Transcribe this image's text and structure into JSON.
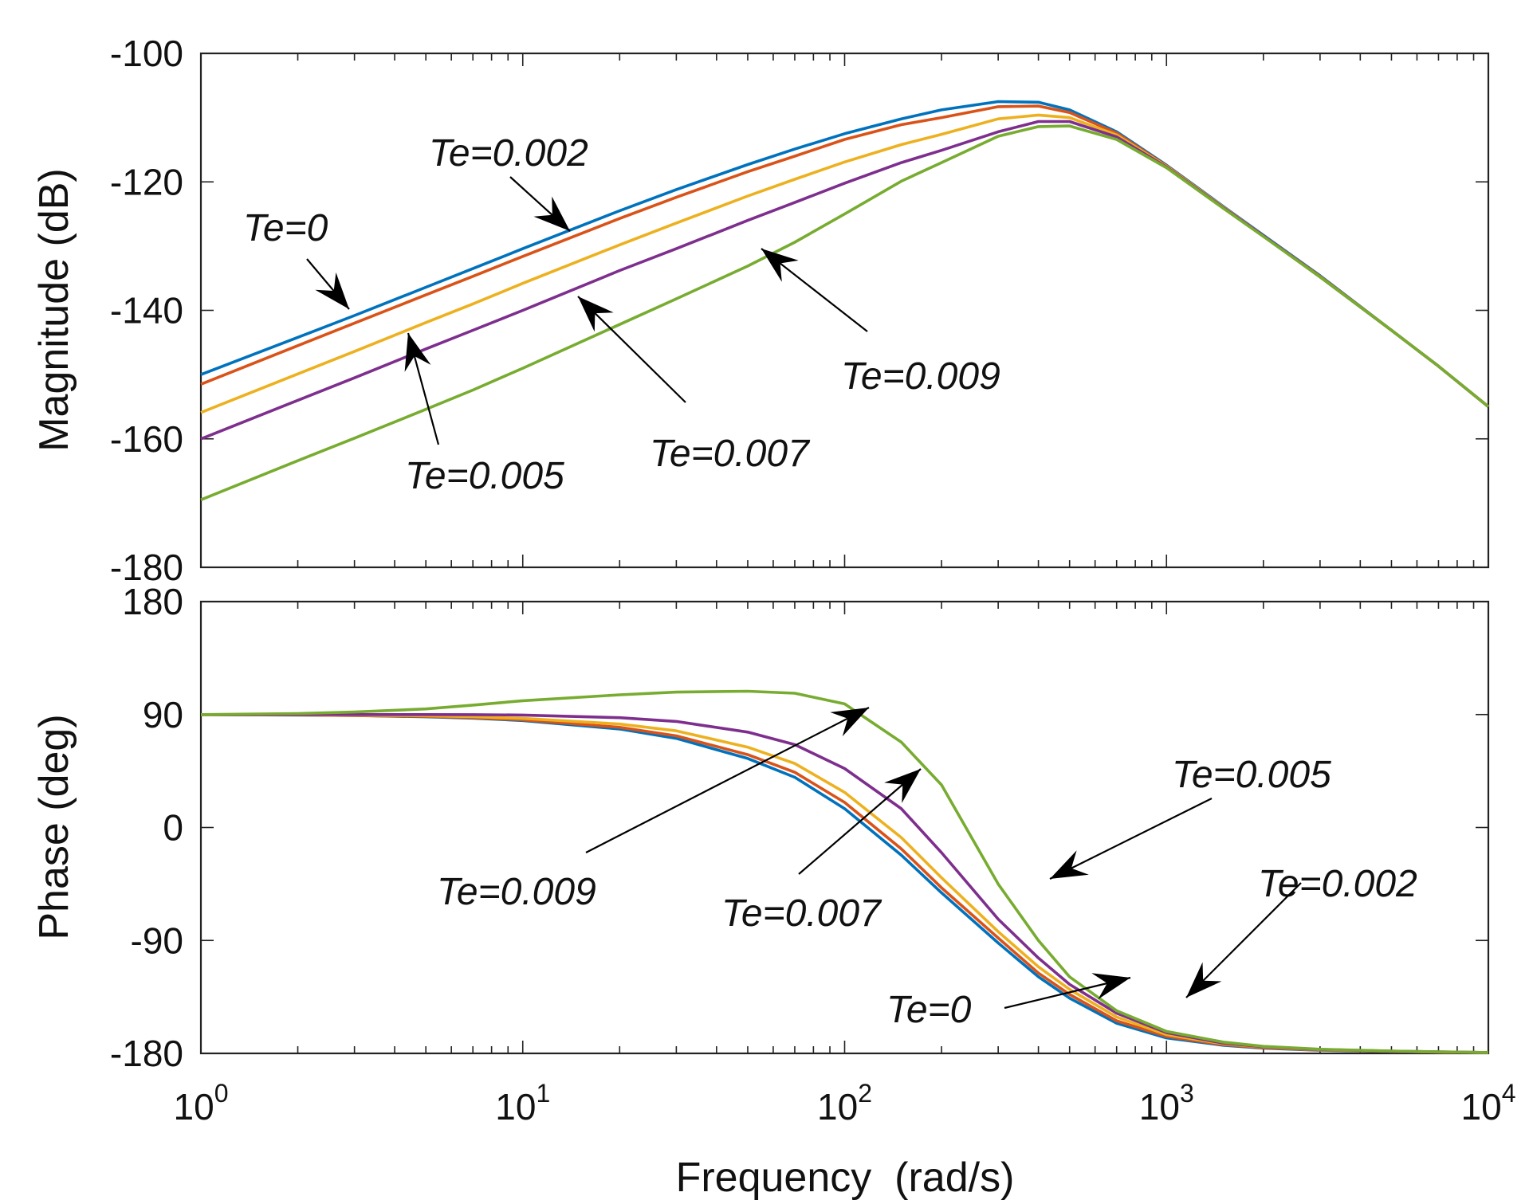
{
  "chart_data": {
    "type": "line",
    "xlabel": "Frequency  (rad/s)",
    "x_scale": "log",
    "xlim": [
      1,
      10000
    ],
    "x_ticks": [
      {
        "value": 1,
        "base": "10",
        "exp": "0"
      },
      {
        "value": 10,
        "base": "10",
        "exp": "1"
      },
      {
        "value": 100,
        "base": "10",
        "exp": "2"
      },
      {
        "value": 1000,
        "base": "10",
        "exp": "3"
      },
      {
        "value": 10000,
        "base": "10",
        "exp": "4"
      }
    ],
    "x": [
      1,
      2,
      3,
      5,
      7,
      10,
      20,
      30,
      50,
      70,
      100,
      150,
      200,
      300,
      400,
      500,
      700,
      1000,
      1500,
      2000,
      3000,
      5000,
      7000,
      10000
    ],
    "panels": [
      {
        "id": "magnitude",
        "ylabel": "Magnitude (dB)",
        "ylim": [
          -180,
          -100
        ],
        "yticks": [
          -100,
          -120,
          -140,
          -160,
          -180
        ],
        "series": [
          {
            "name": "Te=0",
            "color": "#0072BD",
            "values": [
              -150,
              -144.2,
              -140.8,
              -136.4,
              -133.5,
              -130.4,
              -124.5,
              -121.2,
              -117.3,
              -114.9,
              -112.5,
              -110.2,
              -108.8,
              -107.5,
              -107.6,
              -108.8,
              -112.2,
              -117.4,
              -123.8,
              -128.3,
              -134.6,
              -143.1,
              -148.7,
              -155
            ]
          },
          {
            "name": "Te=0.002",
            "color": "#D95319",
            "values": [
              -151.5,
              -145.5,
              -142,
              -137.6,
              -134.7,
              -131.6,
              -125.7,
              -122.4,
              -118.4,
              -116,
              -113.4,
              -111.1,
              -110,
              -108.3,
              -108.2,
              -109.2,
              -112.4,
              -117.5,
              -123.9,
              -128.4,
              -134.7,
              -143.1,
              -148.7,
              -155
            ]
          },
          {
            "name": "Te=0.005",
            "color": "#EDB120",
            "values": [
              -155.9,
              -149.9,
              -146.4,
              -141.9,
              -139,
              -135.8,
              -129.8,
              -126.4,
              -122.2,
              -119.6,
              -116.9,
              -114.2,
              -112.6,
              -110.2,
              -109.6,
              -110,
              -112.7,
              -117.6,
              -123.9,
              -128.4,
              -134.8,
              -143.1,
              -148.7,
              -155
            ]
          },
          {
            "name": "Te=0.007",
            "color": "#7E2F8E",
            "values": [
              -160,
              -154,
              -150.5,
              -146,
              -143.1,
              -140,
              -133.8,
              -130.4,
              -126,
              -123.2,
              -120.2,
              -117,
              -115.1,
              -112.2,
              -110.6,
              -110.6,
              -113,
              -117.7,
              -124,
              -128.4,
              -134.8,
              -143.1,
              -148.7,
              -155
            ]
          },
          {
            "name": "Te=0.009",
            "color": "#77AC30",
            "values": [
              -169.5,
              -163.4,
              -159.9,
              -155.4,
              -152.4,
              -149,
              -142.2,
              -138.2,
              -133.1,
              -129.4,
              -125,
              -119.9,
              -117,
              -112.9,
              -111.4,
              -111.3,
              -113.4,
              -117.8,
              -124.1,
              -128.5,
              -134.8,
              -143.1,
              -148.7,
              -155
            ]
          }
        ]
      },
      {
        "id": "phase",
        "ylabel": "Phase (deg)",
        "ylim": [
          -180,
          180
        ],
        "yticks": [
          180,
          90,
          0,
          -90,
          -180
        ],
        "series": [
          {
            "name": "Te=0",
            "color": "#0072BD",
            "values": [
              90,
              89.6,
              89.2,
              88.2,
              87.1,
              85.2,
              78.5,
              71,
              55,
              40,
              15,
              -22,
              -52,
              -92,
              -119,
              -136,
              -156,
              -167.7,
              -173.5,
              -175.8,
              -177.5,
              -178.5,
              -179,
              -179.4
            ]
          },
          {
            "name": "Te=0.002",
            "color": "#D95319",
            "values": [
              90,
              89.7,
              89.3,
              88.5,
              87.5,
              85.8,
              79.8,
              73,
              58,
              44,
              20,
              -17,
              -48,
              -88,
              -116,
              -133,
              -154,
              -166.5,
              -173,
              -175.5,
              -177.3,
              -178.4,
              -179,
              -179.4
            ]
          },
          {
            "name": "Te=0.005",
            "color": "#EDB120",
            "values": [
              90,
              89.8,
              89.5,
              89,
              88.3,
              86.9,
              82.4,
              77,
              64,
              51,
              28,
              -8,
              -40,
              -83,
              -111,
              -129,
              -151,
              -165,
              -172.3,
              -175,
              -177.1,
              -178.3,
              -178.9,
              -179.3
            ]
          },
          {
            "name": "Te=0.007",
            "color": "#7E2F8E",
            "values": [
              90,
              90,
              90,
              90,
              89.9,
              89.6,
              87.5,
              84.5,
              76,
              66,
              47,
              15,
              -20,
              -73,
              -104,
              -125,
              -148,
              -163.5,
              -171.8,
              -174.7,
              -176.9,
              -178.2,
              -178.8,
              -179.3
            ]
          },
          {
            "name": "Te=0.009",
            "color": "#77AC30",
            "values": [
              90,
              90.8,
              92,
              94.5,
              97.5,
              101,
              105.7,
              107.9,
              108.6,
              107,
              98.5,
              68,
              34,
              -45,
              -90,
              -119,
              -146,
              -162.5,
              -171,
              -174.4,
              -176.7,
              -178.1,
              -178.8,
              -179.3
            ]
          }
        ]
      }
    ],
    "annotations": [
      {
        "panel": "magnitude",
        "text": "Te=0"
      },
      {
        "panel": "magnitude",
        "text": "Te=0.002"
      },
      {
        "panel": "magnitude",
        "text": "Te=0.005"
      },
      {
        "panel": "magnitude",
        "text": "Te=0.007"
      },
      {
        "panel": "magnitude",
        "text": "Te=0.009"
      },
      {
        "panel": "phase",
        "text": "Te=0.009"
      },
      {
        "panel": "phase",
        "text": "Te=0.007"
      },
      {
        "panel": "phase",
        "text": "Te=0.005"
      },
      {
        "panel": "phase",
        "text": "Te=0.002"
      },
      {
        "panel": "phase",
        "text": "Te=0"
      }
    ]
  }
}
